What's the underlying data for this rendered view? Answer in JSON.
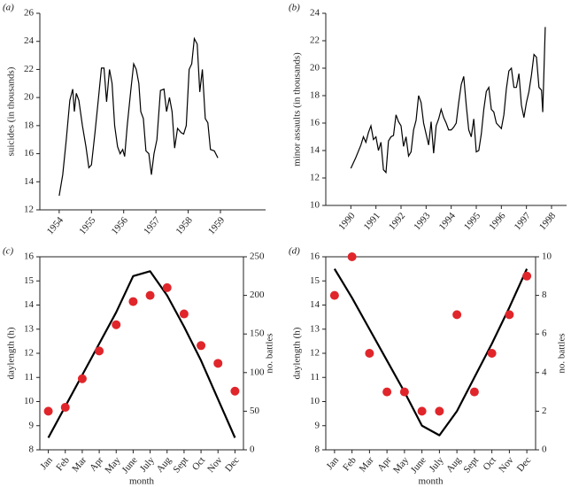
{
  "chart_data": [
    {
      "type": "line",
      "label": "(a)",
      "ylabel": "suicides (in thousands)",
      "color": "#000000",
      "x": [
        1954.0,
        1954.11,
        1954.22,
        1954.33,
        1954.42,
        1954.47,
        1954.53,
        1954.61,
        1954.72,
        1954.83,
        1954.92,
        1955.0,
        1955.11,
        1955.22,
        1955.31,
        1955.39,
        1955.47,
        1955.56,
        1955.64,
        1955.72,
        1955.81,
        1955.89,
        1955.97,
        1956.03,
        1956.11,
        1956.22,
        1956.31,
        1956.39,
        1956.47,
        1956.53,
        1956.61,
        1956.69,
        1956.78,
        1956.86,
        1956.94,
        1957.03,
        1957.14,
        1957.25,
        1957.33,
        1957.42,
        1957.5,
        1957.58,
        1957.67,
        1957.78,
        1957.86,
        1957.94,
        1958.03,
        1958.11,
        1958.19,
        1958.28,
        1958.36,
        1958.44,
        1958.53,
        1958.61,
        1958.69,
        1958.81,
        1958.92
      ],
      "values": [
        13.0,
        14.5,
        17.0,
        19.8,
        20.6,
        19.0,
        20.3,
        19.8,
        18.0,
        16.5,
        15.0,
        15.2,
        17.5,
        20.0,
        22.1,
        22.1,
        19.7,
        22.0,
        21.0,
        18.0,
        16.5,
        16.0,
        16.3,
        15.8,
        18.0,
        20.5,
        22.4,
        22.0,
        21.0,
        19.0,
        18.5,
        16.2,
        16.0,
        14.5,
        16.0,
        17.0,
        20.5,
        20.6,
        19.0,
        20.0,
        19.0,
        16.4,
        17.8,
        17.5,
        17.4,
        18.0,
        22.0,
        22.4,
        24.2,
        23.8,
        20.4,
        22.0,
        18.5,
        18.2,
        16.3,
        16.2,
        15.7
      ],
      "xlim": [
        1953.4,
        1960.4
      ],
      "xticks": [
        1954,
        1955,
        1956,
        1957,
        1958,
        1959
      ],
      "ylim": [
        12,
        26
      ],
      "yticks": [
        12,
        14,
        16,
        18,
        20,
        22,
        24,
        26
      ]
    },
    {
      "type": "line",
      "label": "(b)",
      "ylabel": "minor assaults (in thousands)",
      "color": "#000000",
      "x": [
        1990.0,
        1990.2,
        1990.4,
        1990.5,
        1990.6,
        1990.7,
        1990.8,
        1990.9,
        1991.0,
        1991.1,
        1991.2,
        1991.3,
        1991.4,
        1991.5,
        1991.6,
        1991.7,
        1991.8,
        1991.9,
        1992.0,
        1992.1,
        1992.2,
        1992.3,
        1992.4,
        1992.5,
        1992.6,
        1992.7,
        1992.8,
        1992.9,
        1993.0,
        1993.1,
        1993.2,
        1993.3,
        1993.4,
        1993.5,
        1993.6,
        1993.7,
        1993.8,
        1993.9,
        1994.0,
        1994.1,
        1994.2,
        1994.3,
        1994.4,
        1994.5,
        1994.6,
        1994.7,
        1994.8,
        1994.9,
        1995.0,
        1995.1,
        1995.2,
        1995.3,
        1995.4,
        1995.5,
        1995.6,
        1995.7,
        1995.8,
        1995.9,
        1996.0,
        1996.1,
        1996.2,
        1996.3,
        1996.4,
        1996.5,
        1996.6,
        1996.7,
        1996.8,
        1996.9,
        1997.0,
        1997.1,
        1997.2,
        1997.3,
        1997.4,
        1997.5,
        1997.6,
        1997.65,
        1997.75
      ],
      "values": [
        12.7,
        13.5,
        14.4,
        15.0,
        14.6,
        15.3,
        15.8,
        14.8,
        15.0,
        14.0,
        14.6,
        12.6,
        12.4,
        14.7,
        15.0,
        15.1,
        16.6,
        16.1,
        15.8,
        14.3,
        15.0,
        13.6,
        13.9,
        15.5,
        16.2,
        18.0,
        17.5,
        16.0,
        15.2,
        14.4,
        16.1,
        13.8,
        15.8,
        16.3,
        17.0,
        16.4,
        16.0,
        15.5,
        15.5,
        15.7,
        16.0,
        17.5,
        18.8,
        19.4,
        17.3,
        15.5,
        15.0,
        16.3,
        13.9,
        14.0,
        15.2,
        17.0,
        18.3,
        18.6,
        17.0,
        16.8,
        16.0,
        15.8,
        15.6,
        16.6,
        18.5,
        19.8,
        20.0,
        18.6,
        18.6,
        19.6,
        17.3,
        16.4,
        17.5,
        18.3,
        19.5,
        21.0,
        20.8,
        18.6,
        18.4,
        16.8,
        23.0
      ],
      "xlim": [
        1989.0,
        1998.6
      ],
      "xticks": [
        1990,
        1991,
        1992,
        1993,
        1994,
        1995,
        1996,
        1997,
        1998
      ],
      "ylim": [
        10,
        24
      ],
      "yticks": [
        10,
        12,
        14,
        16,
        18,
        20,
        22,
        24
      ]
    },
    {
      "type": "combo",
      "label": "(c)",
      "xlabel": "month",
      "ylabel": "daylength (h)",
      "y2label": "no. battles",
      "categories": [
        "Jan",
        "Feb",
        "Mar",
        "Apr",
        "May",
        "June",
        "July",
        "Aug",
        "Sept",
        "Oct",
        "Nov",
        "Dec"
      ],
      "series": [
        {
          "type": "line",
          "color": "#000000",
          "values": [
            8.5,
            9.8,
            11.1,
            12.4,
            13.7,
            15.2,
            15.4,
            14.4,
            13.1,
            11.7,
            10.1,
            8.5
          ]
        },
        {
          "type": "scatter",
          "axis": "y2",
          "color": "#e0262b",
          "values": [
            50,
            55,
            92,
            128,
            162,
            192,
            200,
            210,
            176,
            135,
            112,
            76
          ]
        }
      ],
      "ylim": [
        8,
        16
      ],
      "yticks": [
        8,
        9,
        10,
        11,
        12,
        13,
        14,
        15,
        16
      ],
      "y2lim": [
        0,
        250
      ],
      "y2ticks": [
        0,
        50,
        100,
        150,
        200,
        250
      ]
    },
    {
      "type": "combo",
      "label": "(d)",
      "xlabel": "month",
      "ylabel": "daylength (h)",
      "y2label": "no. battles",
      "categories": [
        "Jan",
        "Feb",
        "Mar",
        "Apr",
        "May",
        "June",
        "July",
        "Aug",
        "Sept",
        "Oct",
        "Nov",
        "Dec"
      ],
      "series": [
        {
          "type": "line",
          "color": "#000000",
          "values": [
            15.5,
            14.3,
            13.0,
            11.7,
            10.4,
            9.0,
            8.6,
            9.6,
            11.0,
            12.4,
            13.9,
            15.5
          ]
        },
        {
          "type": "scatter",
          "axis": "y2",
          "color": "#e0262b",
          "values": [
            8,
            10,
            5,
            3,
            3,
            2,
            2,
            7,
            3,
            5,
            7,
            9
          ]
        }
      ],
      "ylim": [
        8,
        16
      ],
      "yticks": [
        8,
        9,
        10,
        11,
        12,
        13,
        14,
        15,
        16
      ],
      "y2lim": [
        0,
        10
      ],
      "y2ticks": [
        0,
        2,
        4,
        6,
        8,
        10
      ]
    }
  ]
}
